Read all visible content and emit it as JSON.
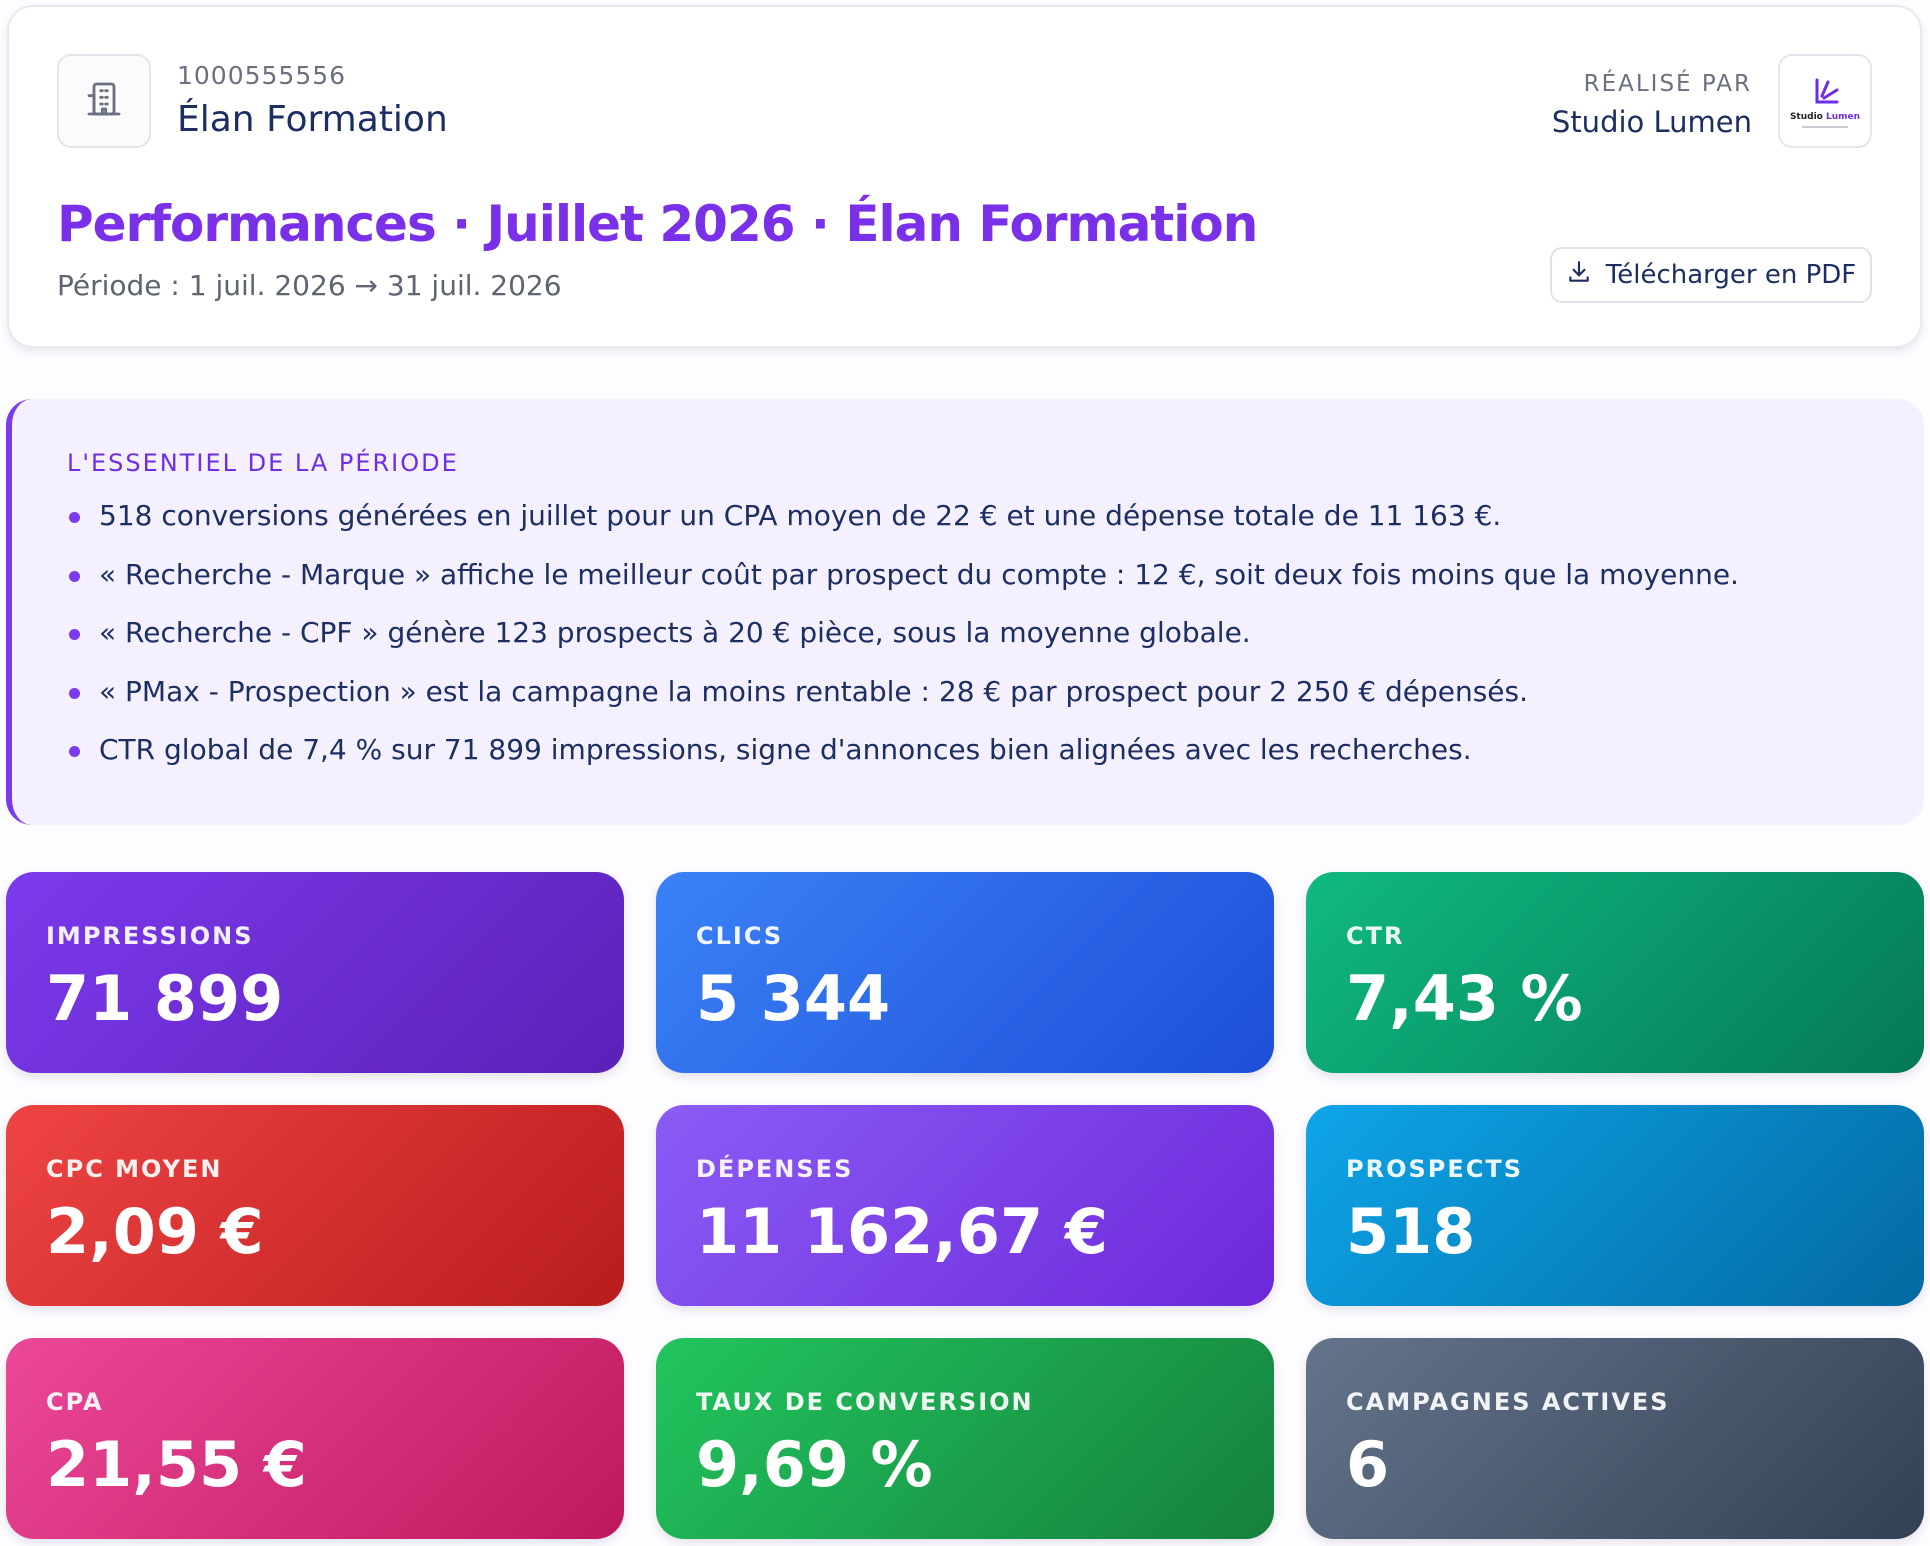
{
  "header": {
    "client_id": "1000555556",
    "client_name": "Élan Formation",
    "made_by_label": "RÉALISÉ PAR",
    "agency_name": "Studio Lumen",
    "agency_logo_text": "Studio Lumen",
    "report_title": "Performances · Juillet 2026 · Élan Formation",
    "period": "Période : 1 juil. 2026 → 31 juil. 2026",
    "pdf_button_label": "Télécharger en PDF",
    "client_icon": "building-icon",
    "pdf_icon": "download-icon"
  },
  "summary": {
    "heading": "L'ESSENTIEL DE LA PÉRIODE",
    "items": [
      "518 conversions générées en juillet pour un CPA moyen de 22 € et une dépense totale de 11 163 €.",
      "« Recherche - Marque » affiche le meilleur coût par prospect du compte : 12 €, soit deux fois moins que la moyenne.",
      "« Recherche - CPF » génère 123 prospects à 20 € pièce, sous la moyenne globale.",
      "« PMax - Prospection » est la campagne la moins rentable : 28 € par prospect pour 2 250 € dépensés.",
      "CTR global de 7,4 % sur 71 899 impressions, signe d'annonces bien alignées avec les recherches."
    ]
  },
  "kpis": [
    {
      "label": "IMPRESSIONS",
      "value": "71 899",
      "color_from": "#7c3aed",
      "color_to": "#5b21b6"
    },
    {
      "label": "CLICS",
      "value": "5 344",
      "color_from": "#3b82f6",
      "color_to": "#1d4ed8"
    },
    {
      "label": "CTR",
      "value": "7,43 %",
      "color_from": "#10b981",
      "color_to": "#047857"
    },
    {
      "label": "CPC MOYEN",
      "value": "2,09 €",
      "color_from": "#ef4444",
      "color_to": "#b91c1c"
    },
    {
      "label": "DÉPENSES",
      "value": "11 162,67 €",
      "color_from": "#8b5cf6",
      "color_to": "#6d28d9"
    },
    {
      "label": "PROSPECTS",
      "value": "518",
      "color_from": "#0ea5e9",
      "color_to": "#0369a1"
    },
    {
      "label": "CPA",
      "value": "21,55 €",
      "color_from": "#ec4899",
      "color_to": "#be185d"
    },
    {
      "label": "TAUX DE CONVERSION",
      "value": "9,69 %",
      "color_from": "#22c55e",
      "color_to": "#15803d"
    },
    {
      "label": "CAMPAGNES ACTIVES",
      "value": "6",
      "color_from": "#64748b",
      "color_to": "#334155"
    }
  ]
}
